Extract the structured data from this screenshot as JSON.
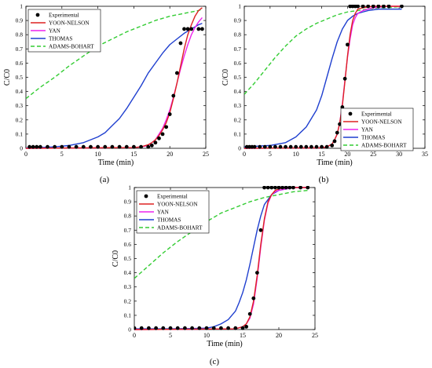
{
  "colors": {
    "experimental": "#000000",
    "yoon_nelson": "#dd2222",
    "yan": "#ee22ee",
    "thomas": "#1f3fcf",
    "adams_bohart": "#33cc33"
  },
  "chart_data": [
    {
      "type": "line",
      "panel_label": "(a)",
      "xlabel": "Time (min)",
      "ylabel": "C/C0",
      "xlim": [
        0,
        25
      ],
      "ylim": [
        0,
        1
      ],
      "xticks": [
        0,
        5,
        10,
        15,
        20,
        25
      ],
      "yticks": [
        0,
        0.1,
        0.2,
        0.3,
        0.4,
        0.5,
        0.6,
        0.7,
        0.8,
        0.9,
        1
      ],
      "grid": false,
      "legend_position": "top-left",
      "series": [
        {
          "name": "Experimental",
          "style": "markers",
          "x": [
            0.5,
            1,
            1.5,
            2,
            3,
            4,
            5,
            6,
            7,
            8,
            9,
            10,
            11,
            12,
            13,
            14,
            15,
            16,
            17,
            17.5,
            18,
            18.5,
            19,
            19.5,
            20,
            20.5,
            21,
            21.5,
            22,
            22.5,
            23,
            24,
            24.5
          ],
          "y": [
            0.01,
            0.01,
            0.01,
            0.01,
            0.01,
            0.01,
            0.01,
            0.01,
            0.01,
            0.01,
            0.01,
            0.01,
            0.01,
            0.01,
            0.01,
            0.01,
            0.01,
            0.01,
            0.01,
            0.02,
            0.04,
            0.07,
            0.1,
            0.15,
            0.24,
            0.37,
            0.53,
            0.74,
            0.84,
            0.84,
            0.84,
            0.84,
            0.84
          ]
        },
        {
          "name": "YOON-NELSON",
          "style": "solid",
          "x": [
            0,
            15,
            16,
            17,
            17.5,
            18,
            18.5,
            19,
            19.5,
            20,
            20.5,
            21,
            21.5,
            22,
            22.5,
            23,
            23.5,
            24,
            24.5
          ],
          "y": [
            0,
            0.005,
            0.01,
            0.025,
            0.04,
            0.06,
            0.09,
            0.13,
            0.18,
            0.25,
            0.35,
            0.46,
            0.58,
            0.7,
            0.8,
            0.87,
            0.93,
            0.97,
            0.99
          ]
        },
        {
          "name": "YAN",
          "style": "solid",
          "x": [
            0,
            15,
            16,
            17,
            17.5,
            18,
            18.5,
            19,
            19.5,
            20,
            20.5,
            21,
            21.5,
            22,
            22.5,
            23,
            23.5,
            24,
            24.5
          ],
          "y": [
            0,
            0.005,
            0.01,
            0.02,
            0.04,
            0.06,
            0.1,
            0.14,
            0.2,
            0.27,
            0.36,
            0.46,
            0.56,
            0.65,
            0.73,
            0.8,
            0.85,
            0.89,
            0.92
          ]
        },
        {
          "name": "THOMAS",
          "style": "solid",
          "x": [
            0,
            2,
            4,
            6,
            8,
            10,
            11,
            12,
            13,
            14,
            15,
            16,
            17,
            18,
            19,
            20,
            21,
            22,
            23,
            24,
            24.5
          ],
          "y": [
            0.003,
            0.006,
            0.01,
            0.02,
            0.04,
            0.08,
            0.11,
            0.16,
            0.21,
            0.28,
            0.36,
            0.44,
            0.53,
            0.6,
            0.67,
            0.73,
            0.77,
            0.81,
            0.84,
            0.87,
            0.88
          ]
        },
        {
          "name": "ADAMS-BOHART",
          "style": "dashed",
          "x": [
            0,
            2,
            4,
            6,
            8,
            10,
            12,
            14,
            16,
            18,
            20,
            22,
            24,
            24.5
          ],
          "y": [
            0.35,
            0.43,
            0.5,
            0.58,
            0.65,
            0.72,
            0.77,
            0.82,
            0.86,
            0.9,
            0.93,
            0.95,
            0.97,
            0.98
          ]
        }
      ]
    },
    {
      "type": "line",
      "panel_label": "(b)",
      "xlabel": "Time (min)",
      "ylabel": "C/C0",
      "xlim": [
        0,
        35
      ],
      "ylim": [
        0,
        1
      ],
      "xticks": [
        0,
        5,
        10,
        15,
        20,
        25,
        30,
        35
      ],
      "yticks": [
        0,
        0.1,
        0.2,
        0.3,
        0.4,
        0.5,
        0.6,
        0.7,
        0.8,
        0.9,
        1
      ],
      "grid": false,
      "legend_position": "bottom-right",
      "series": [
        {
          "name": "Experimental",
          "style": "markers",
          "x": [
            0.5,
            1,
            1.5,
            2,
            3,
            4,
            5,
            6,
            7,
            8,
            9,
            10,
            11,
            12,
            13,
            14,
            15,
            16,
            17,
            17.5,
            18,
            18.5,
            19,
            19.5,
            20,
            20.5,
            21,
            21.5,
            22,
            23,
            24,
            25,
            26,
            27,
            28,
            30.5
          ],
          "y": [
            0.01,
            0.01,
            0.01,
            0.01,
            0.01,
            0.01,
            0.01,
            0.01,
            0.01,
            0.01,
            0.01,
            0.01,
            0.01,
            0.01,
            0.01,
            0.01,
            0.01,
            0.01,
            0.02,
            0.05,
            0.11,
            0.17,
            0.29,
            0.49,
            0.73,
            1,
            1,
            1,
            1,
            1,
            1,
            1,
            1,
            1,
            1,
            1
          ]
        },
        {
          "name": "YOON-NELSON",
          "style": "solid",
          "x": [
            0,
            15,
            16,
            17,
            17.5,
            18,
            18.5,
            19,
            19.5,
            20,
            20.5,
            21,
            21.5,
            22,
            23,
            25,
            28,
            30.5
          ],
          "y": [
            0,
            0.003,
            0.01,
            0.03,
            0.06,
            0.1,
            0.18,
            0.3,
            0.47,
            0.65,
            0.8,
            0.9,
            0.95,
            0.98,
            0.99,
            1,
            1,
            1
          ]
        },
        {
          "name": "YAN",
          "style": "solid",
          "x": [
            0,
            15,
            16,
            17,
            17.5,
            18,
            18.5,
            19,
            19.5,
            20,
            20.5,
            21,
            21.5,
            22,
            23,
            25,
            28,
            30.5
          ],
          "y": [
            0,
            0.003,
            0.01,
            0.03,
            0.06,
            0.1,
            0.18,
            0.31,
            0.48,
            0.64,
            0.77,
            0.87,
            0.92,
            0.95,
            0.97,
            0.99,
            1,
            1
          ]
        },
        {
          "name": "THOMAS",
          "style": "solid",
          "x": [
            0,
            5,
            8,
            10,
            12,
            14,
            15,
            16,
            17,
            18,
            19,
            20,
            21,
            22,
            23,
            24,
            26,
            28,
            30.5
          ],
          "y": [
            0.01,
            0.02,
            0.04,
            0.08,
            0.15,
            0.27,
            0.37,
            0.5,
            0.63,
            0.75,
            0.84,
            0.9,
            0.93,
            0.95,
            0.96,
            0.97,
            0.98,
            0.98,
            0.98
          ]
        },
        {
          "name": "ADAMS-BOHART",
          "style": "dashed",
          "x": [
            0,
            2,
            4,
            6,
            8,
            10,
            12,
            14,
            16,
            18,
            20,
            22,
            24,
            26,
            28,
            30.5
          ],
          "y": [
            0.38,
            0.46,
            0.55,
            0.64,
            0.72,
            0.79,
            0.84,
            0.88,
            0.91,
            0.94,
            0.96,
            0.97,
            0.98,
            0.99,
            0.99,
            1
          ]
        }
      ]
    },
    {
      "type": "line",
      "panel_label": "(c)",
      "xlabel": "Time (min)",
      "ylabel": "C/C0",
      "xlim": [
        0,
        25
      ],
      "ylim": [
        0,
        1
      ],
      "xticks": [
        0,
        5,
        10,
        15,
        20,
        25
      ],
      "yticks": [
        0,
        0.1,
        0.2,
        0.3,
        0.4,
        0.5,
        0.6,
        0.7,
        0.8,
        0.9,
        1
      ],
      "grid": false,
      "legend_position": "top-left",
      "series": [
        {
          "name": "Experimental",
          "style": "markers",
          "x": [
            0,
            1,
            2,
            3,
            4,
            5,
            6,
            7,
            8,
            9,
            10,
            11,
            12,
            13,
            14,
            15,
            15.5,
            16,
            16.5,
            17,
            17.5,
            18,
            18.5,
            19,
            19.5,
            20,
            20.5,
            21,
            21.5,
            22,
            23,
            24
          ],
          "y": [
            0.01,
            0.01,
            0.01,
            0.01,
            0.01,
            0.01,
            0.01,
            0.01,
            0.01,
            0.01,
            0.01,
            0.01,
            0.01,
            0.01,
            0.01,
            0.01,
            0.02,
            0.11,
            0.22,
            0.4,
            0.7,
            1,
            1,
            1,
            1,
            1,
            1,
            1,
            1,
            1,
            1,
            1
          ]
        },
        {
          "name": "YOON-NELSON",
          "style": "solid",
          "x": [
            0,
            14,
            15,
            15.5,
            16,
            16.5,
            17,
            17.5,
            18,
            18.5,
            19,
            19.5,
            20,
            21,
            22,
            24
          ],
          "y": [
            0,
            0.005,
            0.02,
            0.04,
            0.09,
            0.2,
            0.38,
            0.6,
            0.78,
            0.9,
            0.95,
            0.98,
            0.99,
            1,
            1,
            1
          ]
        },
        {
          "name": "YAN",
          "style": "solid",
          "x": [
            0,
            14,
            15,
            15.5,
            16,
            16.5,
            17,
            17.5,
            18,
            18.5,
            19,
            19.5,
            20,
            21,
            22,
            24
          ],
          "y": [
            0,
            0.005,
            0.02,
            0.04,
            0.08,
            0.18,
            0.36,
            0.58,
            0.77,
            0.89,
            0.95,
            0.97,
            0.98,
            0.99,
            1,
            1
          ]
        },
        {
          "name": "THOMAS",
          "style": "solid",
          "x": [
            0,
            5,
            8,
            10,
            11,
            12,
            13,
            14,
            14.5,
            15,
            15.5,
            16,
            16.5,
            17,
            17.5,
            18,
            19,
            20,
            21,
            22,
            24
          ],
          "y": [
            0.005,
            0.005,
            0.007,
            0.01,
            0.02,
            0.04,
            0.07,
            0.13,
            0.19,
            0.26,
            0.35,
            0.46,
            0.58,
            0.7,
            0.8,
            0.88,
            0.95,
            0.98,
            0.99,
            1,
            1
          ]
        },
        {
          "name": "ADAMS-BOHART",
          "style": "dashed",
          "x": [
            0,
            2,
            4,
            6,
            8,
            10,
            12,
            14,
            16,
            18,
            20,
            22,
            24
          ],
          "y": [
            0.36,
            0.45,
            0.54,
            0.62,
            0.69,
            0.76,
            0.82,
            0.86,
            0.9,
            0.93,
            0.95,
            0.97,
            0.98
          ]
        }
      ]
    }
  ]
}
